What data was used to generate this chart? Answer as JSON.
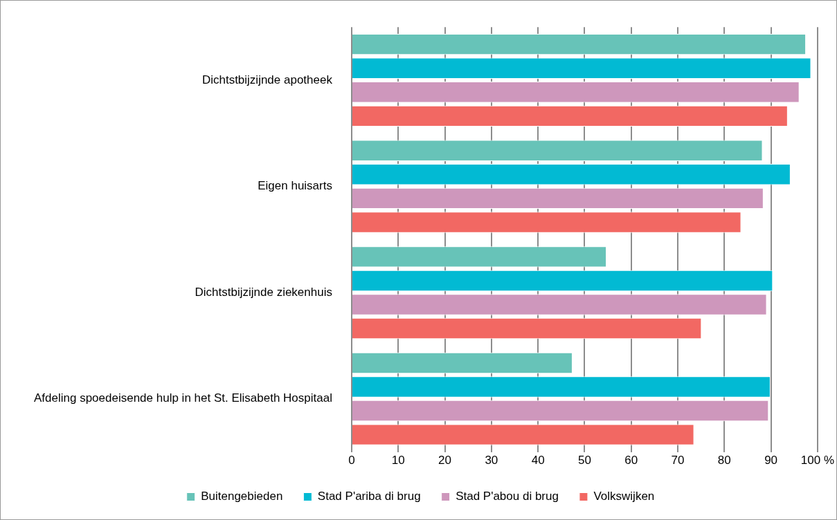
{
  "chart_data": {
    "type": "bar",
    "orientation": "horizontal",
    "categories": [
      "Dichtstbijzijnde apotheek",
      "Eigen huisarts",
      "Dichtstbijzijnde ziekenhuis",
      "Afdeling spoedeisende hulp in het St. Elisabeth Hospitaal"
    ],
    "series": [
      {
        "name": "Buitengebieden",
        "color": "#67c3b8",
        "values": [
          97.5,
          88.2,
          54.7,
          47.4
        ]
      },
      {
        "name": "Stad P'ariba di brug",
        "color": "#02bad3",
        "values": [
          98.6,
          94.2,
          90.4,
          89.9
        ]
      },
      {
        "name": "Stad P'abou di brug",
        "color": "#ce97bc",
        "values": [
          96.1,
          88.4,
          89.1,
          89.5
        ]
      },
      {
        "name": "Volkswijken",
        "color": "#f26863",
        "values": [
          93.6,
          83.6,
          75.1,
          73.5
        ]
      }
    ],
    "xlim": [
      0,
      100
    ],
    "xticks": [
      0,
      10,
      20,
      30,
      40,
      50,
      60,
      70,
      80,
      90,
      {
        "value": 100,
        "label": "100 %"
      }
    ],
    "grid": "x",
    "legend": "bottom"
  }
}
